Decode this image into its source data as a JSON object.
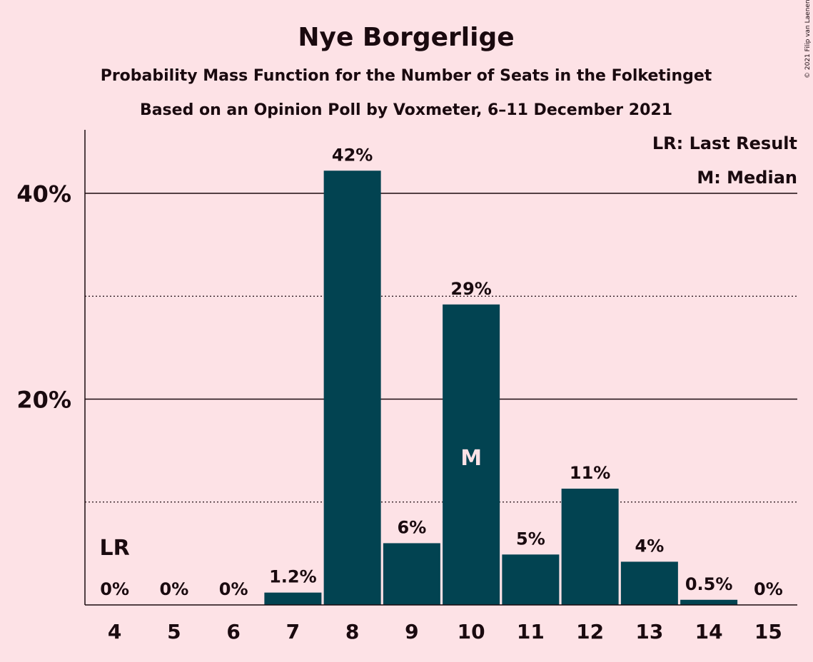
{
  "chart_data": {
    "type": "bar",
    "title": "Nye Borgerlige",
    "subtitle": "Probability Mass Function for the Number of Seats in the Folketinget",
    "subtitle2": "Based on an Opinion Poll by Voxmeter, 6–11 December 2021",
    "categories": [
      "4",
      "5",
      "6",
      "7",
      "8",
      "9",
      "10",
      "11",
      "12",
      "13",
      "14",
      "15"
    ],
    "values": [
      0,
      0,
      0,
      1.2,
      42.2,
      6.0,
      29.2,
      4.9,
      11.3,
      4.2,
      0.5,
      0
    ],
    "value_labels": [
      "0%",
      "0%",
      "0%",
      "1.2%",
      "42%",
      "6%",
      "29%",
      "5%",
      "11%",
      "4%",
      "0.5%",
      "0%"
    ],
    "ylim": [
      0,
      46
    ],
    "yticks_major": [
      20,
      40
    ],
    "ytick_labels": [
      "20%",
      "40%"
    ],
    "yticks_minor": [
      10,
      30
    ],
    "last_result": {
      "category": "4",
      "label": "LR"
    },
    "median": {
      "category": "10",
      "label": "M"
    },
    "legend": [
      "LR: Last Result",
      "M: Median"
    ],
    "legend_position": "top-right",
    "bar_color": "#024351",
    "background_color": "#fde2e6"
  },
  "copyright": "© 2021 Filip van Laenen"
}
